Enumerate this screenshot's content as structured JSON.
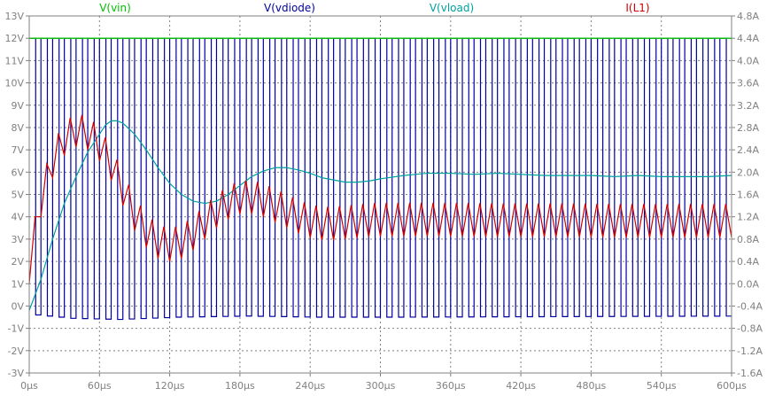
{
  "chart_data": {
    "type": "line",
    "legend_placement": "top",
    "grid": true,
    "x_axis": {
      "range_us": [
        0,
        600
      ],
      "tick_values_us": [
        0,
        60,
        120,
        180,
        240,
        300,
        360,
        420,
        480,
        540,
        600
      ],
      "tick_labels": [
        "0µs",
        "60µs",
        "120µs",
        "180µs",
        "240µs",
        "300µs",
        "360µs",
        "420µs",
        "480µs",
        "540µs",
        "600µs"
      ]
    },
    "y_left": {
      "range": [
        -3,
        13
      ],
      "tick_values": [
        13,
        12,
        11,
        10,
        9,
        8,
        7,
        6,
        5,
        4,
        3,
        2,
        1,
        0,
        -1,
        -2,
        -3
      ],
      "tick_labels": [
        "13V",
        "12V",
        "11V",
        "10V",
        "9V",
        "8V",
        "7V",
        "6V",
        "5V",
        "4V",
        "3V",
        "2V",
        "1V",
        "0V",
        "-1V",
        "-2V",
        "-3V"
      ]
    },
    "y_right": {
      "range": [
        -1.6,
        4.8
      ],
      "tick_values": [
        4.8,
        4.4,
        4.0,
        3.6,
        3.2,
        2.8,
        2.4,
        2.0,
        1.6,
        1.2,
        0.8,
        0.4,
        0.0,
        -0.4,
        -0.8,
        -1.2,
        -1.6
      ],
      "tick_labels": [
        "4.8A",
        "4.4A",
        "4.0A",
        "3.6A",
        "3.2A",
        "2.8A",
        "2.4A",
        "2.0A",
        "1.6A",
        "1.2A",
        "0.8A",
        "0.4A",
        "0.0A",
        "-0.4A",
        "-0.8A",
        "-1.2A",
        "-1.6A"
      ]
    },
    "series": [
      {
        "name": "V(vin)",
        "axis": "left",
        "color": "#00c000",
        "x": [
          0,
          600
        ],
        "y": [
          12,
          12
        ]
      },
      {
        "name": "V(vdiode)",
        "axis": "left",
        "color": "#0000a0",
        "switching_period_us": 10,
        "duty_cycle": 0.55,
        "high_level": 12.0,
        "low_level_envelope": {
          "x": [
            0,
            30,
            70,
            120,
            180,
            240,
            300,
            600
          ],
          "y": [
            -0.4,
            -0.55,
            -0.6,
            -0.5,
            -0.45,
            -0.5,
            -0.5,
            -0.45
          ]
        }
      },
      {
        "name": "V(vload)",
        "axis": "left",
        "color": "#00a0a0",
        "x": [
          0,
          10,
          20,
          30,
          40,
          50,
          60,
          65,
          70,
          75,
          80,
          90,
          100,
          110,
          120,
          130,
          140,
          150,
          160,
          170,
          180,
          190,
          200,
          210,
          220,
          230,
          240,
          250,
          260,
          270,
          280,
          290,
          300,
          320,
          340,
          360,
          380,
          400,
          420,
          440,
          460,
          480,
          500,
          520,
          540,
          560,
          580,
          600
        ],
        "y": [
          -0.2,
          1.2,
          3.0,
          4.6,
          5.8,
          6.9,
          7.7,
          8.1,
          8.3,
          8.3,
          8.2,
          7.7,
          7.0,
          6.2,
          5.5,
          5.0,
          4.7,
          4.6,
          4.7,
          5.0,
          5.4,
          5.8,
          6.05,
          6.2,
          6.2,
          6.1,
          5.95,
          5.75,
          5.65,
          5.55,
          5.55,
          5.6,
          5.7,
          5.85,
          5.95,
          5.95,
          5.9,
          5.95,
          5.9,
          5.85,
          5.85,
          5.85,
          5.8,
          5.85,
          5.8,
          5.8,
          5.8,
          5.85
        ]
      },
      {
        "name": "I(L1)",
        "axis": "right",
        "color": "#d00000",
        "mark_color": "#800080",
        "ripple_period_us": 10,
        "x": [
          0,
          10,
          20,
          30,
          40,
          50,
          60,
          70,
          80,
          90,
          100,
          110,
          120,
          130,
          140,
          150,
          160,
          170,
          180,
          190,
          200,
          210,
          220,
          230,
          240,
          250,
          260,
          270,
          280,
          290,
          300,
          350,
          400,
          450,
          500,
          550,
          600
        ],
        "y_center": [
          0.3,
          1.5,
          2.2,
          2.6,
          2.75,
          2.7,
          2.5,
          2.15,
          1.7,
          1.25,
          0.95,
          0.75,
          0.7,
          0.75,
          0.9,
          1.1,
          1.3,
          1.45,
          1.55,
          1.55,
          1.5,
          1.4,
          1.3,
          1.2,
          1.12,
          1.08,
          1.08,
          1.1,
          1.12,
          1.14,
          1.15,
          1.15,
          1.14,
          1.14,
          1.13,
          1.13,
          1.13
        ],
        "ripple_amplitude": 0.3
      }
    ]
  }
}
